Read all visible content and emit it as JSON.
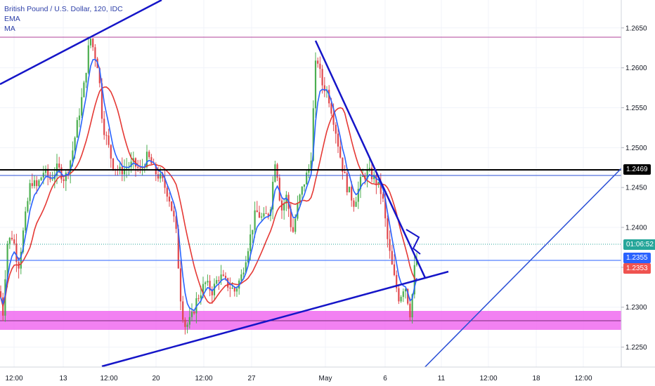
{
  "header": {
    "title": "British Pound / U.S. Dollar, 120, IDC",
    "indicators": [
      "EMA",
      "MA"
    ]
  },
  "price_tags": {
    "last": "1.2469",
    "countdown": "01:06:52",
    "ema": "1.2355",
    "ma": "1.2353"
  },
  "colors": {
    "up": "#26a69a",
    "down": "#ef5350",
    "bar_up": "#4caf50",
    "bar_down": "#e0474c",
    "ema": "#2962ff",
    "ma": "#e53935",
    "trendline": "#1515c8",
    "resistance": "#000000",
    "zone": "#f06bf0",
    "magenta_line": "#b0409a"
  },
  "chart_data": {
    "type": "candlestick",
    "symbol": "GBPUSD",
    "timeframe": "120",
    "ylim": [
      1.2225,
      1.2685
    ],
    "y_ticks": [
      1.225,
      1.23,
      1.235,
      1.24,
      1.245,
      1.25,
      1.255,
      1.26,
      1.265
    ],
    "x_ticks": [
      "12:00",
      "13",
      "12:00",
      "20",
      "12:00",
      "27",
      "May",
      "6",
      "11",
      "12:00",
      "18",
      "12:00"
    ],
    "levels": {
      "resistance": 1.2469,
      "blue_level": 1.2462,
      "magenta_top": 1.2645,
      "current_ema": 1.2355,
      "current_ma": 1.2353,
      "dotted_price": 1.2372
    },
    "demand_zone": [
      1.2256,
      1.2277
    ],
    "price_path": [
      [
        0,
        1.232
      ],
      [
        4,
        1.229
      ],
      [
        10,
        1.238
      ],
      [
        18,
        1.239
      ],
      [
        26,
        1.235
      ],
      [
        34,
        1.24
      ],
      [
        44,
        1.246
      ],
      [
        52,
        1.245
      ],
      [
        62,
        1.247
      ],
      [
        72,
        1.246
      ],
      [
        82,
        1.2475
      ],
      [
        92,
        1.246
      ],
      [
        102,
        1.249
      ],
      [
        112,
        1.254
      ],
      [
        120,
        1.258
      ],
      [
        128,
        1.264
      ],
      [
        134,
        1.262
      ],
      [
        140,
        1.26
      ],
      [
        146,
        1.253
      ],
      [
        152,
        1.251
      ],
      [
        160,
        1.248
      ],
      [
        170,
        1.247
      ],
      [
        180,
        1.2475
      ],
      [
        190,
        1.248
      ],
      [
        200,
        1.247
      ],
      [
        210,
        1.249
      ],
      [
        220,
        1.247
      ],
      [
        230,
        1.246
      ],
      [
        240,
        1.244
      ],
      [
        250,
        1.24
      ],
      [
        258,
        1.23
      ],
      [
        264,
        1.2275
      ],
      [
        272,
        1.2285
      ],
      [
        280,
        1.231
      ],
      [
        292,
        1.233
      ],
      [
        302,
        1.232
      ],
      [
        312,
        1.234
      ],
      [
        322,
        1.233
      ],
      [
        334,
        1.232
      ],
      [
        344,
        1.234
      ],
      [
        354,
        1.238
      ],
      [
        364,
        1.242
      ],
      [
        374,
        1.241
      ],
      [
        384,
        1.242
      ],
      [
        392,
        1.249
      ],
      [
        400,
        1.242
      ],
      [
        408,
        1.244
      ],
      [
        416,
        1.239
      ],
      [
        424,
        1.243
      ],
      [
        434,
        1.246
      ],
      [
        442,
        1.248
      ],
      [
        450,
        1.262
      ],
      [
        458,
        1.258
      ],
      [
        466,
        1.257
      ],
      [
        476,
        1.253
      ],
      [
        486,
        1.248
      ],
      [
        494,
        1.245
      ],
      [
        504,
        1.243
      ],
      [
        514,
        1.246
      ],
      [
        524,
        1.247
      ],
      [
        534,
        1.246
      ],
      [
        544,
        1.244
      ],
      [
        552,
        1.238
      ],
      [
        560,
        1.234
      ],
      [
        568,
        1.231
      ],
      [
        576,
        1.233
      ],
      [
        584,
        1.229
      ],
      [
        590,
        1.235
      ],
      [
        596,
        1.237
      ]
    ]
  }
}
